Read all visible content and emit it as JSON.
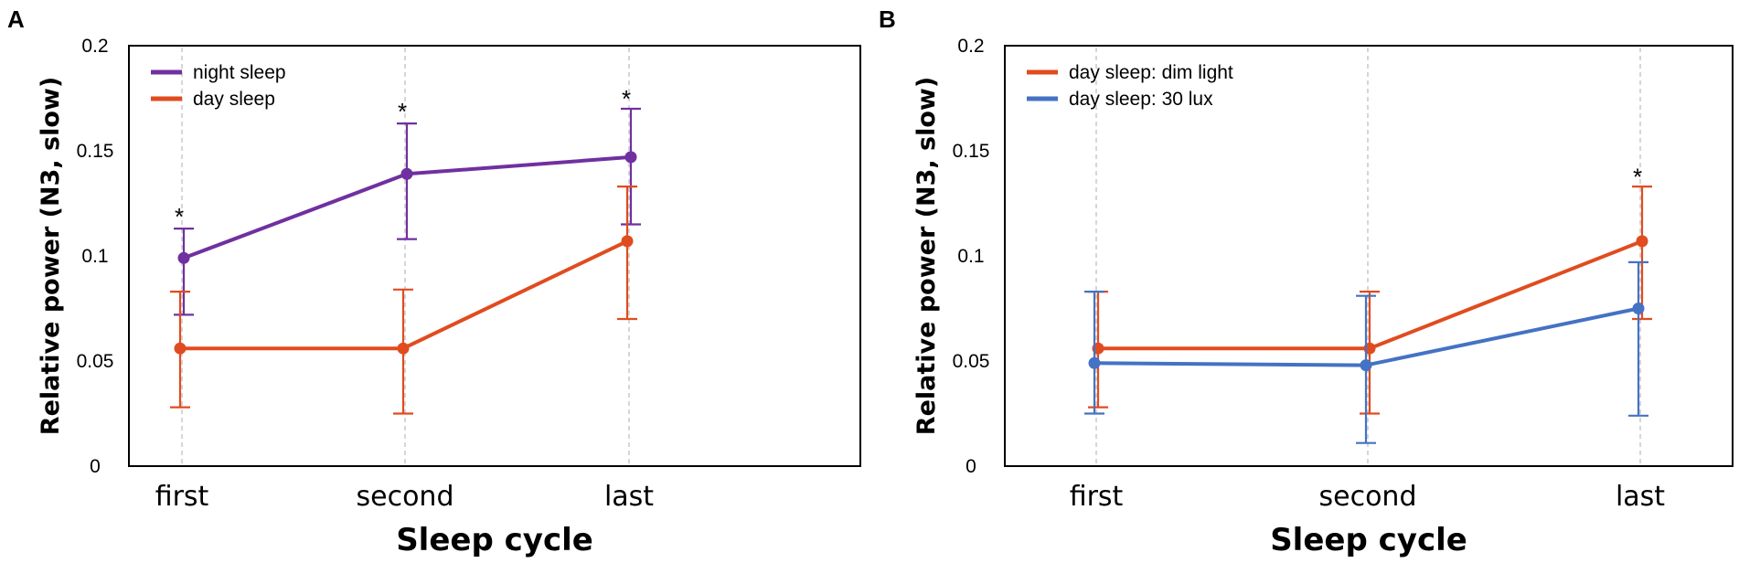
{
  "chart_data": [
    {
      "type": "line",
      "panel_label": "A",
      "categories": [
        "first",
        "second",
        "last"
      ],
      "xlabel": "Sleep cycle",
      "ylabel": "Relative power (N3, slow)",
      "ylim": [
        0,
        0.2
      ],
      "yticks": [
        0,
        0.05,
        0.1,
        0.15,
        0.2
      ],
      "ytick_labels": [
        "0",
        "0.05",
        "0.1",
        "0.15",
        "0.2"
      ],
      "legend_position": "top-left",
      "series": [
        {
          "name": "night sleep",
          "color": "#7030a0",
          "values": [
            0.099,
            0.139,
            0.147
          ],
          "err_low": [
            0.072,
            0.108,
            0.115
          ],
          "err_high": [
            0.113,
            0.163,
            0.17
          ]
        },
        {
          "name": "day sleep",
          "color": "#e04c1f",
          "values": [
            0.056,
            0.056,
            0.107
          ],
          "err_low": [
            0.028,
            0.025,
            0.07
          ],
          "err_high": [
            0.083,
            0.084,
            0.133
          ]
        }
      ],
      "annotations": [
        {
          "text": "*",
          "category": "first",
          "y": 0.12
        },
        {
          "text": "*",
          "category": "second",
          "y": 0.17
        },
        {
          "text": "*",
          "category": "last",
          "y": 0.176
        }
      ]
    },
    {
      "type": "line",
      "panel_label": "B",
      "categories": [
        "first",
        "second",
        "last"
      ],
      "xlabel": "Sleep cycle",
      "ylabel": "Relative power (N3, slow)",
      "ylim": [
        0,
        0.2
      ],
      "yticks": [
        0,
        0.05,
        0.1,
        0.15,
        0.2
      ],
      "ytick_labels": [
        "0",
        "0.05",
        "0.1",
        "0.15",
        "0.2"
      ],
      "legend_position": "top-left",
      "series": [
        {
          "name": "day sleep: dim light",
          "color": "#e04c1f",
          "values": [
            0.056,
            0.056,
            0.107
          ],
          "err_low": [
            0.028,
            0.025,
            0.07
          ],
          "err_high": [
            0.083,
            0.083,
            0.133
          ]
        },
        {
          "name": "day sleep: 30 lux",
          "color": "#4472c4",
          "values": [
            0.049,
            0.048,
            0.075
          ],
          "err_low": [
            0.025,
            0.011,
            0.024
          ],
          "err_high": [
            0.083,
            0.081,
            0.097
          ]
        }
      ],
      "annotations": [
        {
          "text": "*",
          "category": "last",
          "y": 0.139
        }
      ]
    }
  ]
}
